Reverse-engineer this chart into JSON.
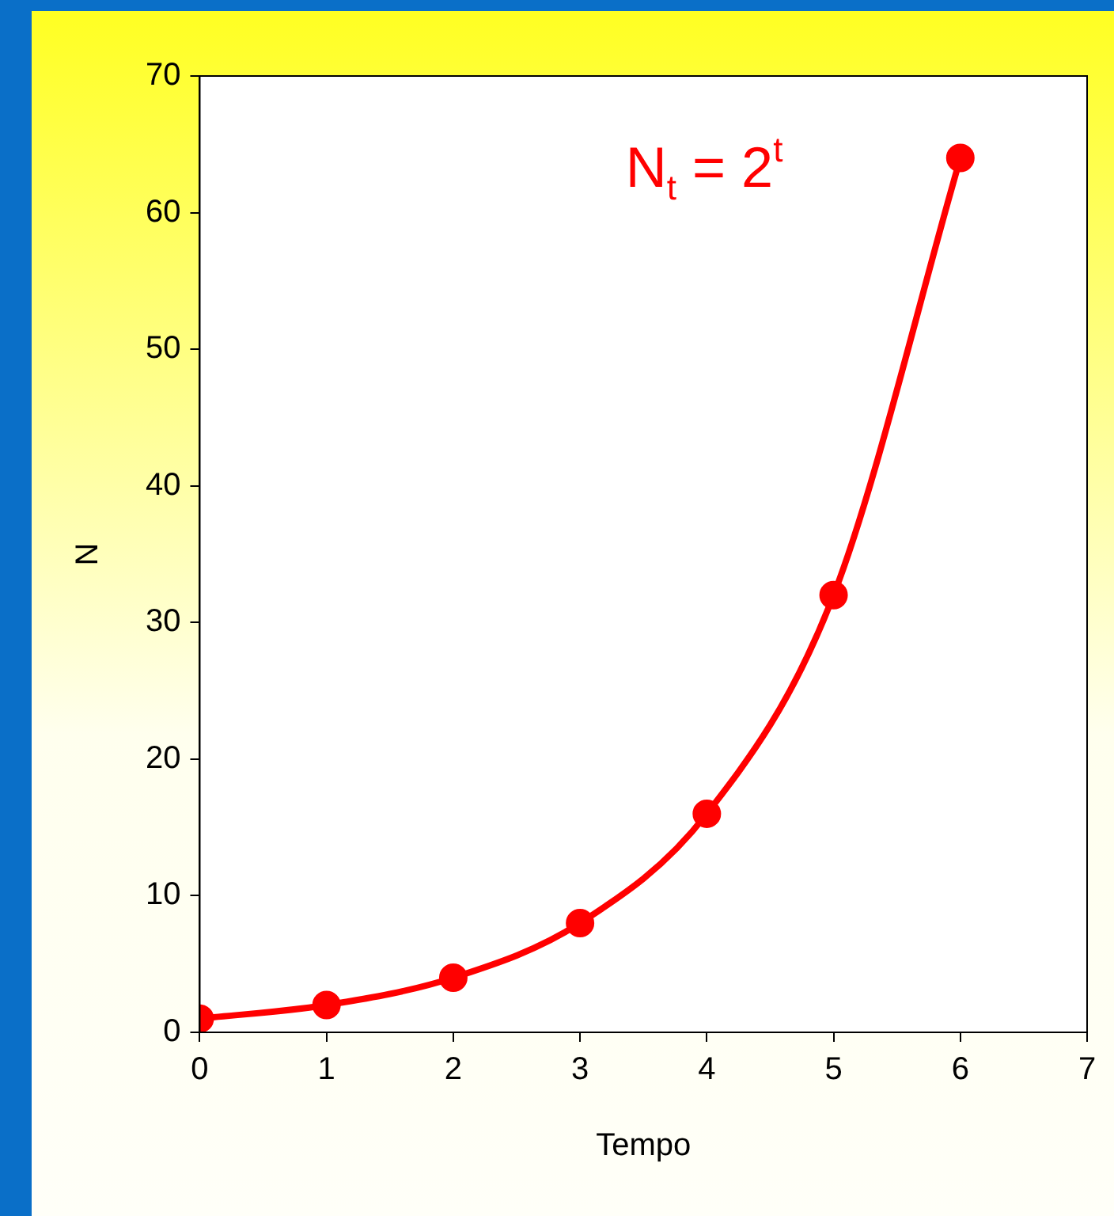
{
  "chart_data": {
    "type": "line",
    "xlabel": "Tempo",
    "ylabel": "N",
    "annotations": [
      "N$_{t}$ = 2$^{t}$"
    ],
    "x": [
      0,
      1,
      2,
      3,
      4,
      5,
      6
    ],
    "series": [
      {
        "color": "#ff0000",
        "values": [
          1,
          2,
          4,
          8,
          16,
          32,
          64
        ]
      }
    ],
    "xlim": [
      0,
      7
    ],
    "xticks": [
      0,
      1,
      2,
      3,
      4,
      5,
      6,
      7
    ],
    "ylim": [
      0,
      70
    ],
    "yticks": [
      0,
      10,
      20,
      30,
      40,
      50,
      60,
      70
    ],
    "grid": false,
    "legend": false,
    "marker": "circle",
    "line_style": "solid"
  }
}
